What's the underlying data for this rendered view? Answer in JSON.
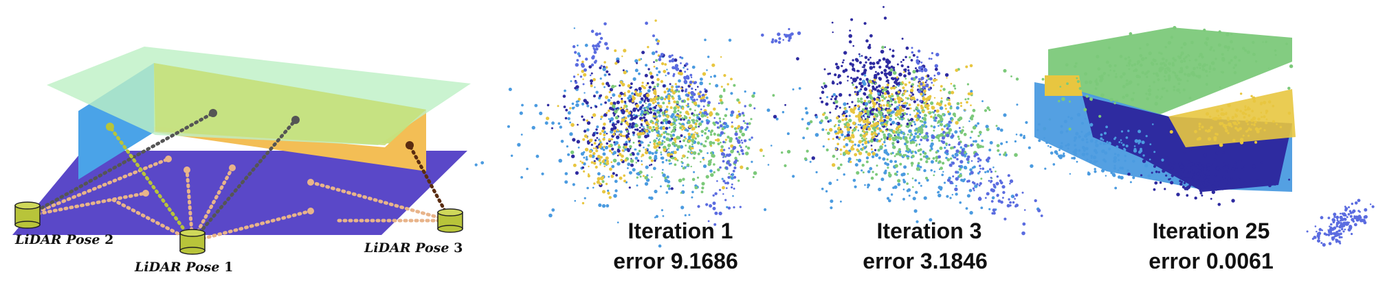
{
  "diagram": {
    "poses": [
      {
        "label": "LiDAR Pose",
        "num": "2"
      },
      {
        "label": "LiDAR Pose",
        "num": "1"
      },
      {
        "label": "LiDAR Pose",
        "num": "3"
      }
    ],
    "colors": {
      "floor": "#5a48c8",
      "ceiling": "#bdf0c4",
      "wall_left": "#4aa3e8",
      "wall_back": "#c6e07c",
      "wall_right": "#f3be55",
      "sensor": "#b8c43a",
      "ray_floor": "#e8b48a"
    }
  },
  "iterations": [
    {
      "title": "Iteration 1",
      "error": "error 9.1686"
    },
    {
      "title": "Iteration 3",
      "error": "error 3.1846"
    },
    {
      "title": "Iteration 25",
      "error": "error 0.0061"
    }
  ],
  "point_colors": [
    "#2e2ba0",
    "#4b9be0",
    "#7cc97a",
    "#e8c640",
    "#5b6ce0"
  ]
}
